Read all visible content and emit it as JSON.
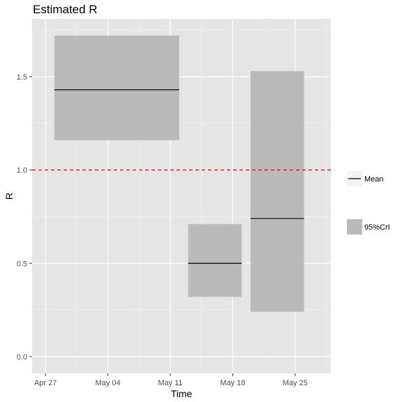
{
  "chart_data": {
    "type": "area",
    "title": "Estimated R",
    "xlabel": "Time",
    "ylabel": "R",
    "x_ticks": [
      "Apr 27",
      "May 04",
      "May 11",
      "May 18",
      "May 25"
    ],
    "y_ticks": [
      "0.0",
      "0.5",
      "1.0",
      "1.5"
    ],
    "ylim": [
      -0.09,
      1.81
    ],
    "xlim_days": [
      -1.5,
      32
    ],
    "x_origin_label": "Apr 27",
    "grid": true,
    "legend_position": "right",
    "legend": [
      {
        "key": "mean",
        "label": "Mean"
      },
      {
        "key": "crl",
        "label": "95%CrI"
      }
    ],
    "reference_line": {
      "y": 1.0,
      "color": "#ff0000",
      "style": "dashed"
    },
    "series": [
      {
        "x_start": 1,
        "x_end": 15,
        "mean": 1.43,
        "lower": 1.16,
        "upper": 1.72
      },
      {
        "x_start": 16,
        "x_end": 22,
        "mean": 0.5,
        "lower": 0.32,
        "upper": 0.71
      },
      {
        "x_start": 23,
        "x_end": 29,
        "mean": 0.74,
        "lower": 0.24,
        "upper": 1.53
      }
    ],
    "colors": {
      "panel": "#e5e5e5",
      "grid_major": "#ffffff",
      "ribbon": "#bababa",
      "mean_line": "#000000",
      "legend_key_bg": "#f2f2f2"
    }
  }
}
